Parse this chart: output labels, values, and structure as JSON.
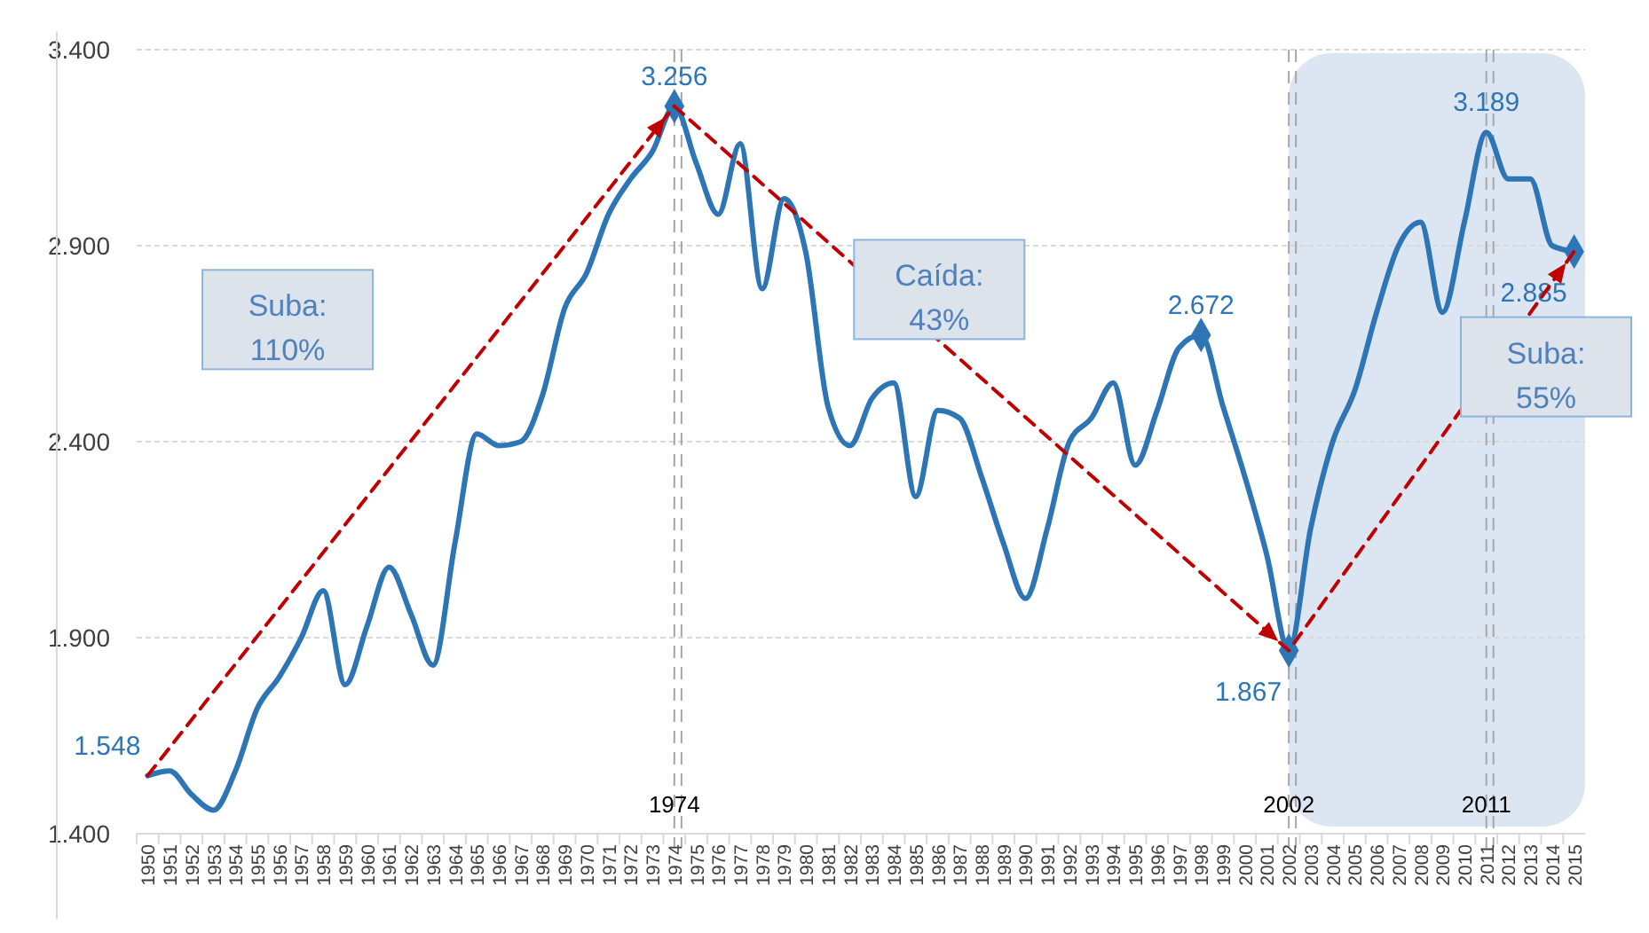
{
  "chart_data": {
    "type": "line",
    "x": [
      1950,
      1951,
      1952,
      1953,
      1954,
      1955,
      1956,
      1957,
      1958,
      1959,
      1960,
      1961,
      1962,
      1963,
      1964,
      1965,
      1966,
      1967,
      1968,
      1969,
      1970,
      1971,
      1972,
      1973,
      1974,
      1975,
      1976,
      1977,
      1978,
      1979,
      1980,
      1981,
      1982,
      1983,
      1984,
      1985,
      1986,
      1987,
      1988,
      1989,
      1990,
      1991,
      1992,
      1993,
      1994,
      1995,
      1996,
      1997,
      1998,
      1999,
      2000,
      2001,
      2002,
      2003,
      2004,
      2005,
      2006,
      2007,
      2008,
      2009,
      2010,
      2011,
      2012,
      2013,
      2014,
      2015
    ],
    "xlim": [
      1949.5,
      2015.5
    ],
    "xticks": [
      1950,
      1951,
      1952,
      1953,
      1954,
      1955,
      1956,
      1957,
      1958,
      1959,
      1960,
      1961,
      1962,
      1963,
      1964,
      1965,
      1966,
      1967,
      1968,
      1969,
      1970,
      1971,
      1972,
      1973,
      1974,
      1975,
      1976,
      1977,
      1978,
      1979,
      1980,
      1981,
      1982,
      1983,
      1984,
      1985,
      1986,
      1987,
      1988,
      1989,
      1990,
      1991,
      1992,
      1993,
      1994,
      1995,
      1996,
      1997,
      1998,
      1999,
      2000,
      2001,
      2002,
      2003,
      2004,
      2005,
      2006,
      2007,
      2008,
      2009,
      2010,
      2011,
      2012,
      2013,
      2014,
      2015
    ],
    "series": [
      {
        "color": "#2e75b6",
        "values": [
          1.548,
          1.56,
          1.5,
          1.46,
          1.56,
          1.72,
          1.8,
          1.9,
          2.02,
          1.78,
          1.93,
          2.08,
          1.96,
          1.83,
          2.14,
          2.42,
          2.39,
          2.4,
          2.52,
          2.74,
          2.83,
          2.98,
          3.07,
          3.14,
          3.256,
          3.11,
          2.98,
          3.16,
          2.79,
          3.02,
          2.88,
          2.49,
          2.39,
          2.51,
          2.55,
          2.26,
          2.48,
          2.46,
          2.31,
          2.14,
          2.0,
          2.18,
          2.4,
          2.46,
          2.55,
          2.34,
          2.48,
          2.64,
          2.672,
          2.49,
          2.31,
          2.11,
          1.867,
          2.18,
          2.4,
          2.53,
          2.73,
          2.9,
          2.96,
          2.73,
          2.96,
          3.189,
          3.07,
          3.07,
          2.9,
          2.885
        ],
        "value_labels": [
          "1.548",
          null,
          null,
          null,
          null,
          null,
          null,
          null,
          null,
          null,
          null,
          null,
          null,
          null,
          null,
          null,
          null,
          null,
          null,
          null,
          null,
          null,
          null,
          null,
          "3.256",
          null,
          null,
          null,
          null,
          null,
          null,
          null,
          null,
          null,
          null,
          null,
          null,
          null,
          null,
          null,
          null,
          null,
          null,
          null,
          null,
          null,
          null,
          null,
          "2.672",
          null,
          null,
          null,
          "1.867",
          null,
          null,
          null,
          null,
          null,
          null,
          null,
          null,
          "3.189",
          null,
          null,
          null,
          "2.885"
        ]
      },
      {
        "type": "scatter",
        "marker": "diamond",
        "color": "#2e75b6",
        "x": [
          1974,
          1998,
          2002,
          2015
        ],
        "values": [
          3.256,
          2.672,
          1.867,
          2.885
        ]
      },
      {
        "type": "line",
        "line_style": "dashed",
        "color": "#c00000",
        "x": [
          1950,
          1974,
          2002,
          2015
        ],
        "values": [
          1.548,
          3.256,
          1.867,
          2.885
        ]
      }
    ],
    "ylim": [
      1.4,
      3.4
    ],
    "yticks": [
      {
        "value": 1.4,
        "label": "1.400"
      },
      {
        "value": 1.9,
        "label": "1.900"
      },
      {
        "value": 2.4,
        "label": "2.400"
      },
      {
        "value": 2.9,
        "label": "2.900"
      },
      {
        "value": 3.4,
        "label": "3.400"
      }
    ],
    "grid": "y",
    "ref_lines": [
      {
        "axis": "x",
        "value": 1974,
        "label": "1974",
        "color": "#a6a6a6",
        "line_style": "dashed"
      },
      {
        "axis": "x",
        "value": 2002,
        "label": "2002",
        "color": "#a6a6a6",
        "line_style": "dashed"
      },
      {
        "axis": "x",
        "value": 2011,
        "label": "2011",
        "color": "#a6a6a6",
        "line_style": "dashed"
      }
    ],
    "bands": [
      {
        "axis": "x",
        "from": 2002,
        "to": 2015.5,
        "color": "#dce6f2"
      }
    ],
    "annotations": [
      "Suba:\n110%",
      "Caída:\n43%",
      "Suba:\n55%"
    ]
  }
}
